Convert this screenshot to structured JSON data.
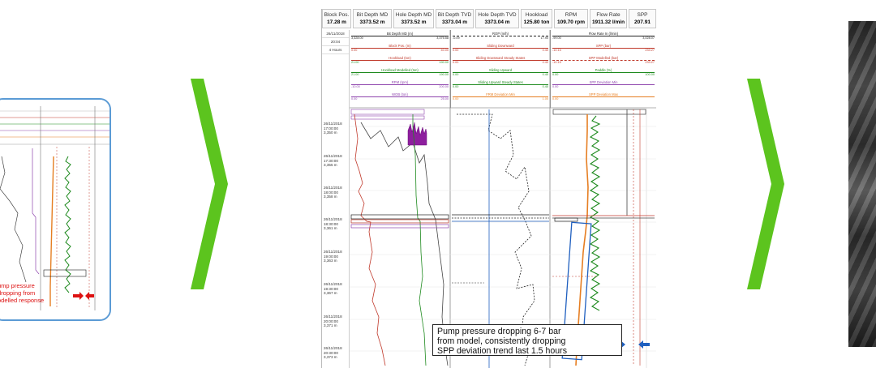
{
  "header": {
    "cells": [
      {
        "label": "Block Pos.",
        "value": "17.28 m"
      },
      {
        "label": "Bit Depth MD",
        "value": "3373.52 m"
      },
      {
        "label": "Hole Depth MD",
        "value": "3373.52 m"
      },
      {
        "label": "Bit Depth TVD",
        "value": "3373.04 m"
      },
      {
        "label": "Hole Depth TVD",
        "value": "3373.04 m"
      },
      {
        "label": "Hookload",
        "value": "125.80 ton"
      },
      {
        "label": "RPM",
        "value": "109.70 rpm"
      },
      {
        "label": "Flow Rate",
        "value": "1911.32 l/min"
      },
      {
        "label": "SPP",
        "value": "207.91"
      }
    ]
  },
  "time_column": {
    "items": [
      "26/11/2018",
      "20:04",
      "4 Hours"
    ],
    "depth_labels": [
      "26/11/2018\n17:00:00\n3,350 m",
      "26/11/2018\n17:30:00\n3,355 m",
      "26/11/2018\n18:00:00\n3,358 m",
      "26/11/2018\n18:30:00\n3,361 m",
      "26/11/2018\n19:00:00\n3,363 m",
      "26/11/2018\n19:30:00\n3,367 m",
      "26/11/2018\n20:00:00\n3,371 m",
      "26/11/2018\n20:30:00\n3,373 m"
    ]
  },
  "tracks": [
    {
      "curves": [
        {
          "name": "Bit Depth MD (m)",
          "lo": "3,328.00",
          "hi": "3,375.58",
          "color": "#222222"
        },
        {
          "name": "Block Pos. (m)",
          "lo": "0.00",
          "hi": "40.00",
          "color": "#c0392b"
        },
        {
          "name": "Hookload (ton)",
          "lo": "21.00",
          "hi": "190.00",
          "color": "#c0392b"
        },
        {
          "name": "Hookload Modelled (ton)",
          "lo": "21.00",
          "hi": "190.00",
          "color": "#1e8a1e"
        },
        {
          "name": "RPM (rpm)",
          "lo": "-10.00",
          "hi": "200.00",
          "color": "#8e44ad"
        },
        {
          "name": "WOB (ton)",
          "lo": "0.00",
          "hi": "25.00",
          "color": "#8e44ad"
        }
      ]
    },
    {
      "curves": [
        {
          "name": "ROP (m/h)",
          "lo": "-0.09",
          "hi": "17.90",
          "color": "#222222"
        },
        {
          "name": "Sliding Downward",
          "lo": "0.00",
          "hi": "0.40",
          "color": "#c0392b"
        },
        {
          "name": "Sliding Downward Steady States",
          "lo": "0.00",
          "hi": "0.40",
          "color": "#c0392b"
        },
        {
          "name": "Sliding Upward",
          "lo": "0.00",
          "hi": "0.40",
          "color": "#1e8a1e"
        },
        {
          "name": "Sliding Upward Steady States",
          "lo": "0.00",
          "hi": "0.40",
          "color": "#1e8a1e"
        },
        {
          "name": "FRM Deviation Min",
          "lo": "0.00",
          "hi": "1.00",
          "color": "#e67e22"
        }
      ]
    },
    {
      "curves": [
        {
          "name": "Flow Rate In (l/min)",
          "lo": "-99.00",
          "hi": "3,028.07",
          "color": "#222222"
        },
        {
          "name": "SPP (bar)",
          "lo": "-10.15",
          "hi": "233.27",
          "color": "#c0392b"
        },
        {
          "name": "SPP Modelled (bar)",
          "lo": "-10.15",
          "hi": "233.27",
          "color": "#c0392b"
        },
        {
          "name": "Paddle (%)",
          "lo": "0.00",
          "hi": "100.00",
          "color": "#1e8a1e"
        },
        {
          "name": "SPP Deviation Min",
          "lo": "0.00",
          "hi": "",
          "color": "#8e44ad"
        },
        {
          "name": "SPP Deviation Max",
          "lo": "0.00",
          "hi": "",
          "color": "#e67e22"
        }
      ]
    }
  ],
  "annotation": {
    "text": "Pump pressure dropping 6-7 bar\nfrom model, consistently dropping\nSPP deviation trend last 1.5 hours"
  },
  "left_panel": {
    "callout": "ump pressure\ndropping from\nodelled response"
  },
  "colors": {
    "accent_green": "#5cc41e",
    "curve_red": "#c0392b",
    "curve_green": "#1e8a1e",
    "curve_purple": "#8e44ad",
    "curve_orange": "#e67e22",
    "curve_blue": "#1f5fbf",
    "panel_border": "#5b9bd5"
  },
  "icons": {
    "separator": "chevron-right-icon"
  }
}
